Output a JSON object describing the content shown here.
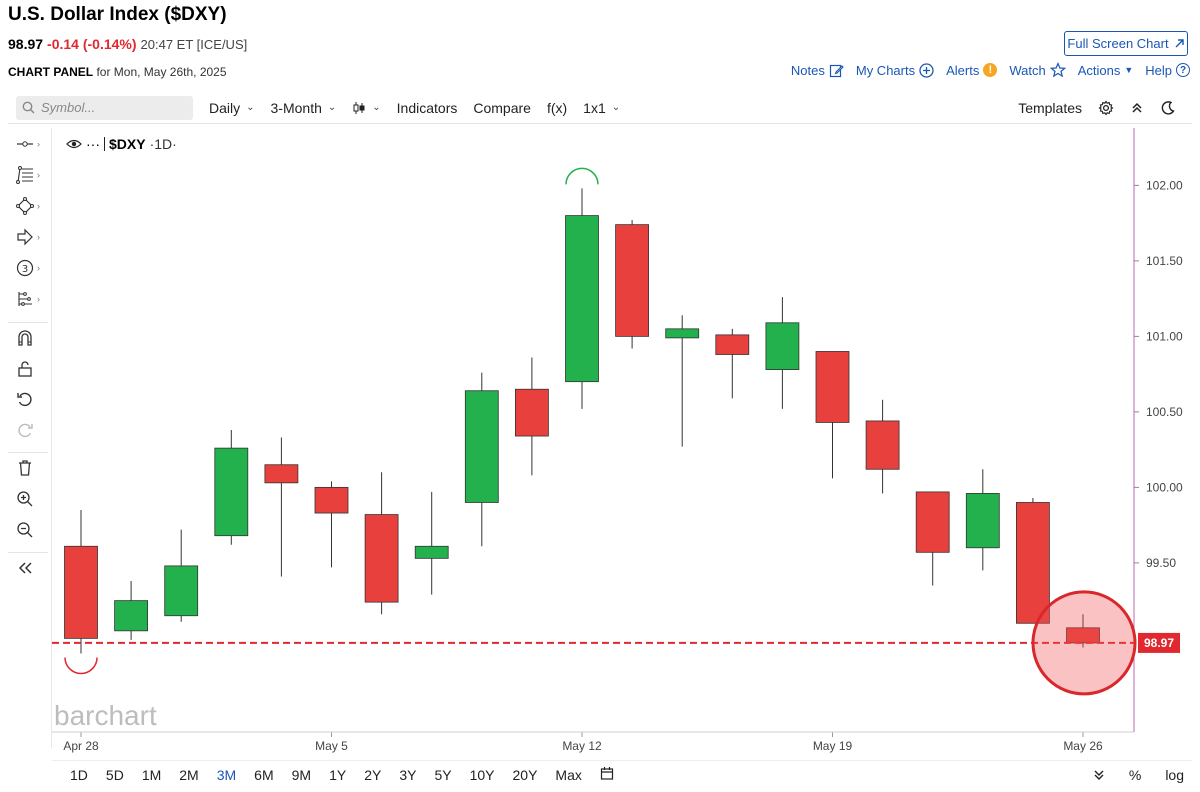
{
  "header": {
    "title": "U.S. Dollar Index ($DXY)",
    "last": "98.97",
    "change": "-0.14 (-0.14%)",
    "meta": "20:47 ET [ICE/US]",
    "panel_label": "CHART PANEL",
    "panel_date": "for Mon, May 26th, 2025",
    "fullscreen_label": "Full Screen Chart"
  },
  "top_actions": {
    "notes": "Notes",
    "my_charts": "My Charts",
    "alerts": "Alerts",
    "watch": "Watch",
    "actions": "Actions",
    "help": "Help"
  },
  "toolbar": {
    "symbol_placeholder": "Symbol...",
    "interval": "Daily",
    "range": "3-Month",
    "indicators": "Indicators",
    "compare": "Compare",
    "fx": "f(x)",
    "layout": "1x1",
    "templates": "Templates"
  },
  "legend": {
    "symbol": "$DXY",
    "interval": "·1D·"
  },
  "bottom": {
    "ranges": [
      "1D",
      "5D",
      "1M",
      "2M",
      "3M",
      "6M",
      "9M",
      "1Y",
      "2Y",
      "3Y",
      "5Y",
      "10Y",
      "20Y",
      "Max"
    ],
    "active_range": "3M",
    "pct": "%",
    "log": "log"
  },
  "colors": {
    "up": "#22b14c",
    "down": "#e8403d",
    "accent": "#1a57b5",
    "price_line": "#e0282e",
    "axis_line": "#b86bb0"
  },
  "chart_data": {
    "type": "candlestick",
    "title": "U.S. Dollar Index ($DXY)",
    "interval": "Daily",
    "last_price_label": "98.97",
    "last_price": 98.97,
    "ylim": [
      98.38,
      102.38
    ],
    "y_ticks": [
      "102.00",
      "101.50",
      "101.00",
      "100.50",
      "100.00",
      "99.50"
    ],
    "x_tick_labels": [
      {
        "label": "Apr 28",
        "index": 0
      },
      {
        "label": "May 5",
        "index": 5
      },
      {
        "label": "May 12",
        "index": 10
      },
      {
        "label": "May 19",
        "index": 15
      },
      {
        "label": "May 26",
        "index": 20
      }
    ],
    "candles": [
      {
        "date": "Apr 28",
        "open": 99.61,
        "high": 99.85,
        "low": 98.9,
        "close": 99.0
      },
      {
        "date": "Apr 29",
        "open": 99.05,
        "high": 99.38,
        "low": 98.99,
        "close": 99.25
      },
      {
        "date": "Apr 30",
        "open": 99.15,
        "high": 99.72,
        "low": 99.11,
        "close": 99.48
      },
      {
        "date": "May 1",
        "open": 99.68,
        "high": 100.38,
        "low": 99.62,
        "close": 100.26
      },
      {
        "date": "May 2",
        "open": 100.15,
        "high": 100.33,
        "low": 99.41,
        "close": 100.03
      },
      {
        "date": "May 5",
        "open": 100.0,
        "high": 100.04,
        "low": 99.47,
        "close": 99.83
      },
      {
        "date": "May 6",
        "open": 99.82,
        "high": 100.1,
        "low": 99.16,
        "close": 99.24
      },
      {
        "date": "May 7",
        "open": 99.53,
        "high": 99.97,
        "low": 99.29,
        "close": 99.61
      },
      {
        "date": "May 8",
        "open": 99.9,
        "high": 100.76,
        "low": 99.61,
        "close": 100.64
      },
      {
        "date": "May 9",
        "open": 100.65,
        "high": 100.86,
        "low": 100.08,
        "close": 100.34
      },
      {
        "date": "May 12",
        "open": 100.7,
        "high": 101.98,
        "low": 100.52,
        "close": 101.8
      },
      {
        "date": "May 13",
        "open": 101.74,
        "high": 101.77,
        "low": 100.92,
        "close": 101.0
      },
      {
        "date": "May 14",
        "open": 100.99,
        "high": 101.14,
        "low": 100.27,
        "close": 101.05
      },
      {
        "date": "May 15",
        "open": 101.01,
        "high": 101.05,
        "low": 100.59,
        "close": 100.88
      },
      {
        "date": "May 16",
        "open": 100.78,
        "high": 101.26,
        "low": 100.52,
        "close": 101.09
      },
      {
        "date": "May 19",
        "open": 100.9,
        "high": 100.9,
        "low": 100.06,
        "close": 100.43
      },
      {
        "date": "May 20",
        "open": 100.44,
        "high": 100.58,
        "low": 99.96,
        "close": 100.12
      },
      {
        "date": "May 21",
        "open": 99.97,
        "high": 99.97,
        "low": 99.35,
        "close": 99.57
      },
      {
        "date": "May 22",
        "open": 99.6,
        "high": 100.12,
        "low": 99.45,
        "close": 99.96
      },
      {
        "date": "May 23",
        "open": 99.9,
        "high": 99.93,
        "low": 99.1,
        "close": 99.1
      },
      {
        "date": "May 26",
        "open": 99.07,
        "high": 99.16,
        "low": 98.94,
        "close": 98.97
      }
    ]
  }
}
